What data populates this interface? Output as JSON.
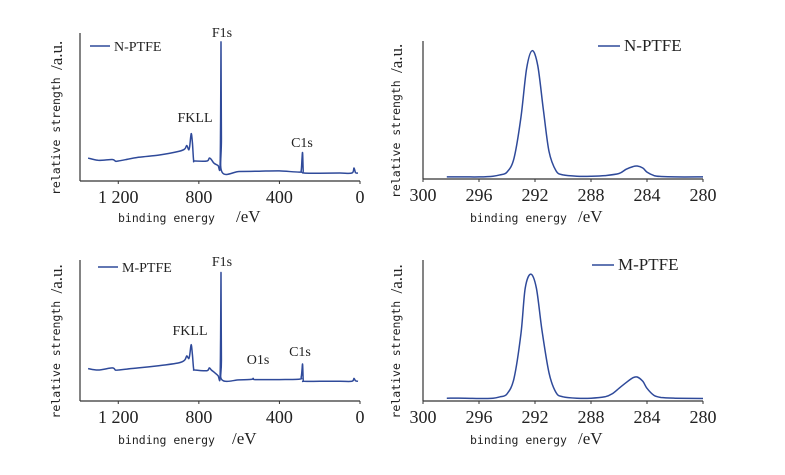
{
  "chart_data": [
    {
      "type": "line",
      "xlabel": "binding energy",
      "xunit": "/eV",
      "ylabel": "relative strength",
      "yunit": "/a.u.",
      "xlim": [
        1390,
        0
      ],
      "ylim": [
        0,
        100
      ],
      "xticks": [
        1200,
        800,
        400,
        0
      ],
      "xtick_labels": [
        "1 200",
        "800",
        "400",
        "0"
      ],
      "legend_placement": "top-left",
      "grid": false,
      "series": [
        {
          "name": "N-PTFE",
          "color": "#2f4a9a",
          "x": [
            1350,
            1300,
            1230,
            1215,
            1200,
            1100,
            1000,
            900,
            870,
            860,
            850,
            845,
            838,
            832,
            826,
            820,
            760,
            748,
            738,
            725,
            705,
            695,
            692,
            690,
            688,
            685,
            600,
            500,
            400,
            300,
            292,
            288,
            285,
            282,
            278,
            200,
            100,
            40,
            30,
            22,
            10
          ],
          "y": [
            15.5,
            14,
            14.5,
            13.5,
            13.5,
            16,
            17.5,
            20,
            21.6,
            24,
            21,
            24,
            32,
            26,
            14,
            13.5,
            13.5,
            15.5,
            14.5,
            12,
            10.5,
            9,
            40,
            94,
            30,
            6,
            6.4,
            6.6,
            6.8,
            6,
            7,
            15,
            19,
            7,
            5.4,
            5.3,
            5.4,
            5.4,
            8.8,
            5.6,
            5.4
          ]
        }
      ],
      "annotations": [
        "F1s",
        "FKLL",
        "C1s"
      ]
    },
    {
      "type": "line",
      "xlabel": "binding energy",
      "xunit": "/eV",
      "ylabel": "relative strength",
      "yunit": "/a.u.",
      "xlim": [
        300,
        280
      ],
      "ylim": [
        0,
        100
      ],
      "xticks": [
        300,
        296,
        292,
        288,
        284,
        280
      ],
      "xtick_labels": [
        "300",
        "296",
        "292",
        "288",
        "284",
        "280"
      ],
      "legend_placement": "top-right",
      "grid": false,
      "series": [
        {
          "name": "N-PTFE",
          "color": "#2f4a9a",
          "x": [
            298.3,
            297,
            296,
            295,
            294.5,
            294,
            293.5,
            293,
            292.6,
            292.2,
            291.8,
            291.4,
            291,
            290.5,
            290,
            289,
            288,
            287,
            286,
            285.5,
            285,
            284.7,
            284.3,
            284,
            283.5,
            283,
            282,
            280
          ],
          "y": [
            1.5,
            1.5,
            1.5,
            2,
            3,
            5,
            15,
            45,
            80,
            93,
            82,
            50,
            20,
            6,
            3,
            2,
            2,
            2.5,
            4,
            7,
            9,
            9.4,
            8,
            5,
            2.5,
            1.8,
            1.5,
            1.5
          ]
        }
      ]
    },
    {
      "type": "line",
      "xlabel": "binding energy",
      "xunit": "/eV",
      "ylabel": "relative strength",
      "yunit": "/a.u.",
      "xlim": [
        1390,
        0
      ],
      "ylim": [
        0,
        100
      ],
      "xticks": [
        1200,
        800,
        400,
        0
      ],
      "xtick_labels": [
        "1 200",
        "800",
        "400",
        "0"
      ],
      "legend_placement": "top-left",
      "grid": false,
      "series": [
        {
          "name": "M-PTFE",
          "color": "#2f4a9a",
          "x": [
            1350,
            1300,
            1230,
            1215,
            1200,
            1100,
            1000,
            900,
            870,
            860,
            850,
            845,
            838,
            832,
            826,
            820,
            760,
            748,
            738,
            725,
            705,
            695,
            692,
            690,
            688,
            685,
            600,
            540,
            530,
            520,
            400,
            300,
            292,
            288,
            285,
            282,
            278,
            200,
            100,
            40,
            30,
            22,
            10
          ],
          "y": [
            23,
            22,
            23.5,
            22,
            22,
            23.5,
            25,
            27,
            29,
            32,
            30,
            33,
            40,
            33,
            23,
            22,
            21.5,
            23.5,
            22,
            20.5,
            18,
            16,
            45,
            91,
            30,
            15,
            15,
            15.3,
            16,
            15.2,
            15.2,
            15.5,
            17,
            22,
            26,
            15,
            14,
            14,
            14,
            14,
            16,
            14.3,
            14
          ]
        }
      ],
      "annotations": [
        "F1s",
        "FKLL",
        "O1s",
        "C1s"
      ]
    },
    {
      "type": "line",
      "xlabel": "binding energy",
      "xunit": "/eV",
      "ylabel": "relative strength",
      "yunit": "/a.u.",
      "xlim": [
        300,
        280
      ],
      "ylim": [
        0,
        100
      ],
      "xticks": [
        300,
        296,
        292,
        288,
        284,
        280
      ],
      "xtick_labels": [
        "300",
        "296",
        "292",
        "288",
        "284",
        "280"
      ],
      "legend_placement": "top-right",
      "grid": false,
      "series": [
        {
          "name": "M-PTFE",
          "color": "#2f4a9a",
          "x": [
            298.3,
            297,
            296,
            295,
            294.5,
            294,
            293.5,
            293,
            292.7,
            292.3,
            291.9,
            291.5,
            291,
            290.5,
            290,
            289,
            288,
            287,
            286.5,
            286,
            285.5,
            285,
            284.7,
            284.3,
            284,
            283.5,
            283,
            282,
            280
          ],
          "y": [
            2,
            2,
            1.8,
            2,
            3,
            5,
            16,
            48,
            80,
            90,
            80,
            50,
            20,
            6,
            3,
            2,
            2,
            3,
            5,
            9,
            13,
            16.5,
            17,
            14,
            9,
            4,
            2.5,
            2,
            1.8
          ]
        }
      ]
    }
  ]
}
